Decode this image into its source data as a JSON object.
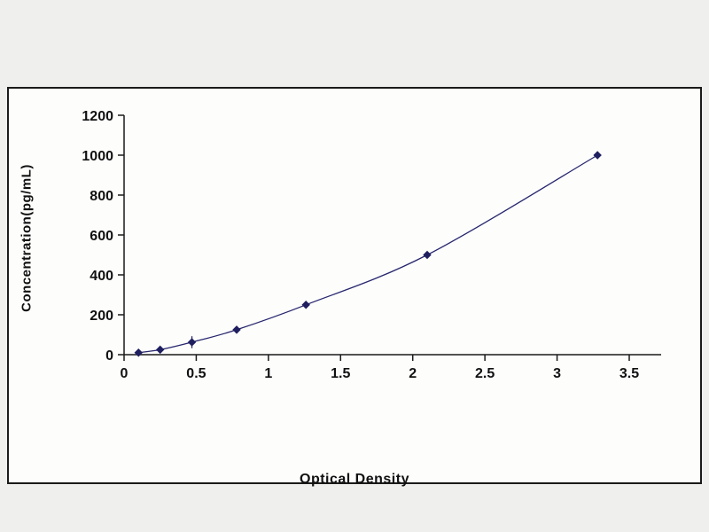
{
  "chart_data": {
    "type": "line",
    "title": "",
    "xlabel": "Optical Density",
    "ylabel": "Concentration(pg/mL)",
    "x": [
      0.1,
      0.25,
      0.47,
      0.78,
      1.26,
      2.1,
      3.28
    ],
    "y": [
      10,
      25,
      62.5,
      125,
      250,
      500,
      1000
    ],
    "y_err": [
      0,
      0,
      30,
      0,
      0,
      0,
      0
    ],
    "xlim": [
      0,
      3.5
    ],
    "ylim": [
      0,
      1200
    ],
    "x_ticks": [
      0,
      0.5,
      1,
      1.5,
      2,
      2.5,
      3,
      3.5
    ],
    "x_tick_labels": [
      "0",
      "0.5",
      "1",
      "1.5",
      "2",
      "2.5",
      "3",
      "3.5"
    ],
    "y_ticks": [
      0,
      200,
      400,
      600,
      800,
      1000,
      1200
    ],
    "y_tick_labels": [
      "0",
      "200",
      "400",
      "600",
      "800",
      "1000",
      "1200"
    ],
    "line_color": "#26266e",
    "marker": "diamond",
    "marker_color": "#1f1f60",
    "tick_label_color": "#111111",
    "grid": false,
    "legend": null
  }
}
